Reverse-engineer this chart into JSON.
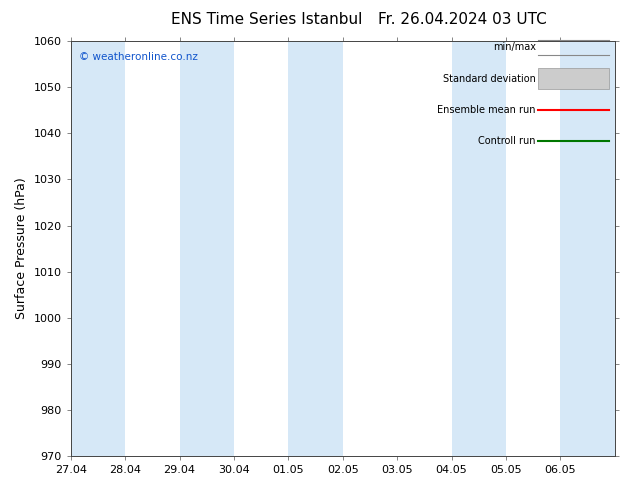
{
  "title": "ENS Time Series Istanbul",
  "title2": "Fr. 26.04.2024 03 UTC",
  "ylabel": "Surface Pressure (hPa)",
  "ylim": [
    970,
    1060
  ],
  "yticks": [
    970,
    980,
    990,
    1000,
    1010,
    1020,
    1030,
    1040,
    1050,
    1060
  ],
  "x_labels": [
    "27.04",
    "28.04",
    "29.04",
    "30.04",
    "01.05",
    "02.05",
    "03.05",
    "04.05",
    "05.05",
    "06.05"
  ],
  "shaded_bands": [
    0,
    2,
    4,
    7,
    9
  ],
  "band_color": "#d6e8f7",
  "background_color": "#ffffff",
  "watermark": "© weatheronline.co.nz",
  "legend_labels": [
    "min/max",
    "Standard deviation",
    "Ensemble mean run",
    "Controll run"
  ],
  "legend_colors_line": [
    "#888888",
    "#bbbbbb",
    "#ff0000",
    "#007700"
  ],
  "figsize": [
    6.34,
    4.9
  ],
  "dpi": 100,
  "title_fontsize": 11,
  "tick_fontsize": 8,
  "ylabel_fontsize": 9
}
